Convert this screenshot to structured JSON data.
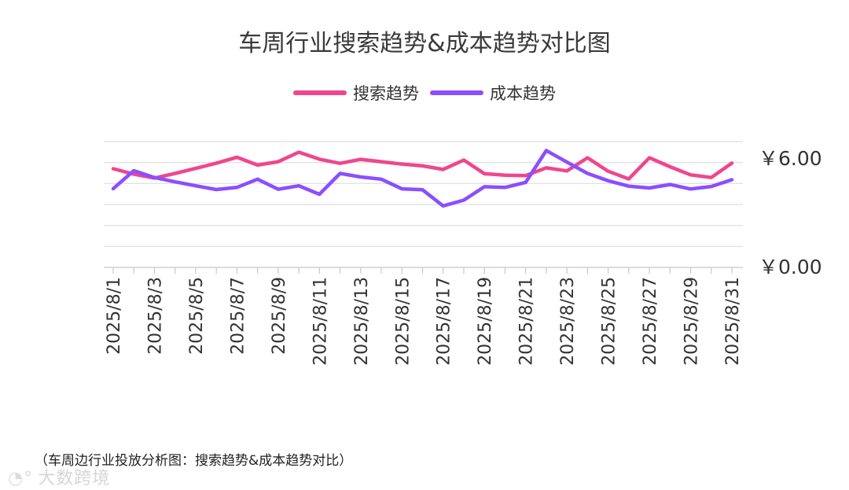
{
  "title": "车周行业搜索趋势&成本趋势对比图",
  "footnote": "（车周边行业投放分析图：搜索趋势&成本趋势对比）",
  "watermark": "大数跨境",
  "chart_data": {
    "type": "line",
    "title": "车周行业搜索趋势&成本趋势对比图",
    "x": [
      "2025/8/1",
      "2025/8/2",
      "2025/8/3",
      "2025/8/4",
      "2025/8/5",
      "2025/8/6",
      "2025/8/7",
      "2025/8/8",
      "2025/8/9",
      "2025/8/10",
      "2025/8/11",
      "2025/8/12",
      "2025/8/13",
      "2025/8/14",
      "2025/8/15",
      "2025/8/16",
      "2025/8/17",
      "2025/8/18",
      "2025/8/19",
      "2025/8/20",
      "2025/8/21",
      "2025/8/22",
      "2025/8/23",
      "2025/8/24",
      "2025/8/25",
      "2025/8/26",
      "2025/8/27",
      "2025/8/28",
      "2025/8/29",
      "2025/8/30",
      "2025/8/31"
    ],
    "x_tick_labels": [
      "2025/8/1",
      "2025/8/3",
      "2025/8/5",
      "2025/8/7",
      "2025/8/9",
      "2025/8/11",
      "2025/8/13",
      "2025/8/15",
      "2025/8/17",
      "2025/8/19",
      "2025/8/21",
      "2025/8/23",
      "2025/8/25",
      "2025/8/27",
      "2025/8/29",
      "2025/8/31"
    ],
    "y_tick_labels": [
      {
        "value": 6.0,
        "label": "￥6.00"
      },
      {
        "value": 0.0,
        "label": "￥0.00"
      }
    ],
    "ylim": [
      0,
      7
    ],
    "grid": true,
    "legend_position": "top-center",
    "series": [
      {
        "name": "搜索趋势",
        "color": "#f0468d",
        "values": [
          5.49,
          5.19,
          4.97,
          5.23,
          5.51,
          5.8,
          6.13,
          5.69,
          5.88,
          6.41,
          6.02,
          5.79,
          6.01,
          5.88,
          5.75,
          5.65,
          5.45,
          5.97,
          5.21,
          5.13,
          5.11,
          5.54,
          5.37,
          6.1,
          5.35,
          4.92,
          6.1,
          5.6,
          5.15,
          5.0,
          5.8
        ]
      },
      {
        "name": "成本趋势",
        "color": "#8a4fff",
        "values": [
          4.38,
          5.38,
          5.0,
          4.76,
          4.54,
          4.33,
          4.45,
          4.91,
          4.35,
          4.54,
          4.07,
          5.23,
          5.03,
          4.91,
          4.37,
          4.32,
          3.42,
          3.74,
          4.49,
          4.45,
          4.73,
          6.5,
          5.86,
          5.23,
          4.82,
          4.52,
          4.42,
          4.61,
          4.36,
          4.5,
          4.88
        ]
      }
    ]
  }
}
